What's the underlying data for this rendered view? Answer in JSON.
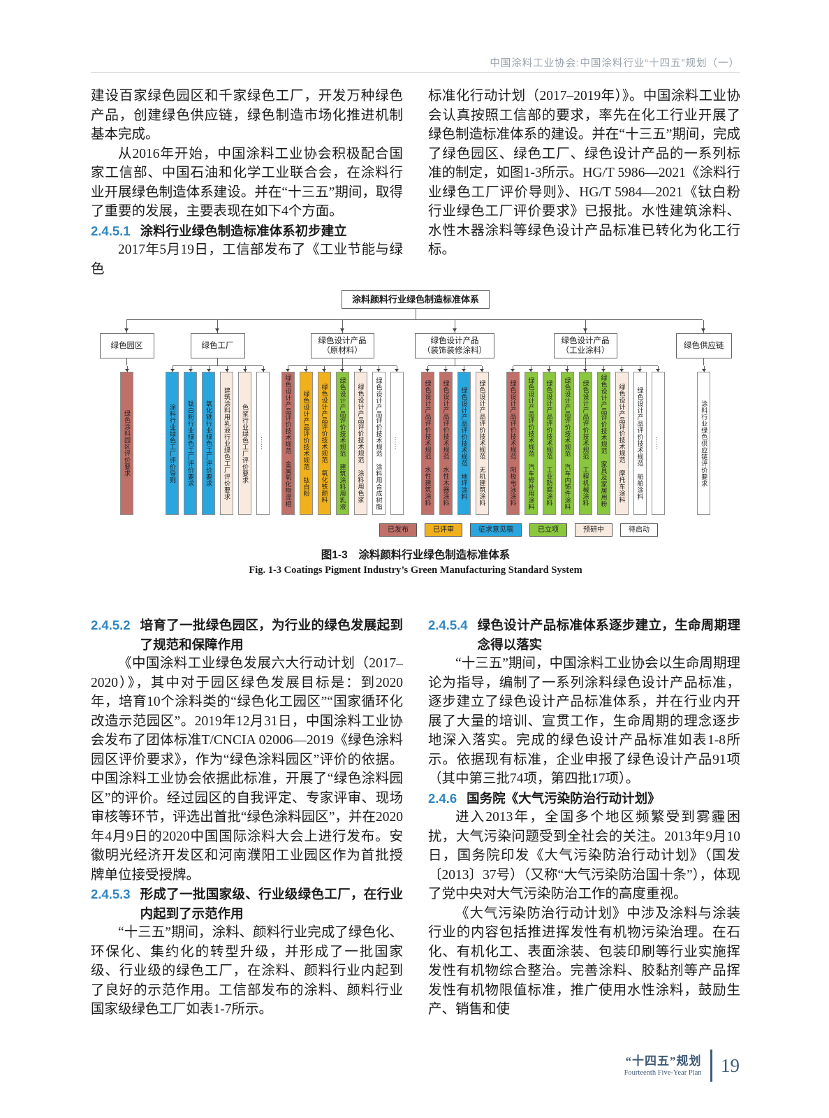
{
  "header": {
    "title": "中国涂料工业协会:中国涂料行业“十四五”规划（一）"
  },
  "col_top_left": {
    "p1": "建设百家绿色园区和千家绿色工厂，开发万种绿色产品，创建绿色供应链，绿色制造市场化推进机制基本完成。",
    "p2": "从2016年开始，中国涂料工业协会积极配合国家工信部、中国石油和化学工业联合会，在涂料行业开展绿色制造体系建设。并在“十三五”期间，取得了重要的发展，主要表现在如下4个方面。",
    "h_num": "2.4.5.1",
    "h_title": "涂料行业绿色制造标准体系初步建立",
    "p3": "2017年5月19日，工信部发布了《工业节能与绿色"
  },
  "col_top_right": {
    "p1": "标准化行动计划（2017–2019年）》。中国涂料工业协会认真按照工信部的要求，率先在化工行业开展了绿色制造标准体系的建设。并在“十三五”期间，完成了绿色园区、绿色工厂、绿色设计产品的一系列标准的制定，如图1-3所示。HG/T 5986—2021《涂料行业绿色工厂评价导则》、HG/T 5984—2021《钛白粉行业绿色工厂评价要求》已报批。水性建筑涂料、水性木器涂料等绿色设计产品标准已转化为化工行标。"
  },
  "figure": {
    "root_label": "涂料颜料行业绿色制造标准体系",
    "status_colors": {
      "published": "#bf7069",
      "reviewed": "#f0b11c",
      "draft": "#2aa6de",
      "approved": "#8bc63f",
      "research": "#f9eadf",
      "pending": "#ffffff"
    },
    "legend": [
      {
        "label": "已发布",
        "status": "published"
      },
      {
        "label": "已评审",
        "status": "reviewed"
      },
      {
        "label": "征求意见稿",
        "status": "draft"
      },
      {
        "label": "已立项",
        "status": "approved"
      },
      {
        "label": "预研中",
        "status": "research"
      },
      {
        "label": "待启动",
        "status": "pending"
      }
    ],
    "groups": [
      {
        "label": [
          "绿色园区"
        ],
        "bars": [
          {
            "text": "绿色涂料园区评价要求",
            "status": "published"
          }
        ]
      },
      {
        "label": [
          "绿色工厂"
        ],
        "bars": [
          {
            "text": "涂料行业绿色工厂评价导则",
            "status": "draft"
          },
          {
            "text": "钛白粉行业绿色工厂评价要求",
            "status": "draft"
          },
          {
            "text": "氧化铁行业绿色工厂评价要求",
            "status": "draft"
          },
          {
            "text": "建筑涂料用乳液行业绿色工厂评价要求",
            "status": "research"
          },
          {
            "text": "色浆行业绿色工厂评价要求",
            "status": "research"
          },
          {
            "text": "……",
            "status": "pending"
          }
        ]
      },
      {
        "label": [
          "绿色设计产品",
          "（原材料）"
        ],
        "bars": [
          {
            "text": "绿色设计产品评价技术规范　金属氧化物混相颜料",
            "status": "published"
          },
          {
            "text": "绿色设计产品评价技术规范　钛白粉",
            "status": "reviewed"
          },
          {
            "text": "绿色设计产品评价技术规范　氧化铁颜料",
            "status": "reviewed"
          },
          {
            "text": "绿色设计产品评价技术规范　建筑涂料用乳液",
            "status": "approved"
          },
          {
            "text": "绿色设计产品评价技术规范　涂料用色浆",
            "status": "research"
          },
          {
            "text": "绿色设计产品评价技术规范　涂料用合成树脂",
            "status": "pending"
          },
          {
            "text": "……",
            "status": "pending"
          }
        ]
      },
      {
        "label": [
          "绿色设计产品",
          "（装饰装修涂料）"
        ],
        "bars": [
          {
            "text": "绿色设计产品评价技术规范　水性建筑涂料",
            "status": "published"
          },
          {
            "text": "绿色设计产品评价技术规范　水性木器涂料",
            "status": "published"
          },
          {
            "text": "绿色设计产品评价技术规范　地坪涂料",
            "status": "draft"
          },
          {
            "text": "绿色设计产品评价技术规范　无机建筑涂料",
            "status": "research"
          }
        ]
      },
      {
        "label": [
          "绿色设计产品",
          "（工业涂料）"
        ],
        "bars": [
          {
            "text": "绿色设计产品评价技术规范　阳极电泳涂料",
            "status": "published"
          },
          {
            "text": "绿色设计产品评价技术规范　汽车修补用涂料",
            "status": "approved"
          },
          {
            "text": "绿色设计产品评价技术规范　工业防腐涂料",
            "status": "approved"
          },
          {
            "text": "绿色设计产品评价技术规范　汽车内饰件涂料",
            "status": "approved"
          },
          {
            "text": "绿色设计产品评价技术规范　工程机械涂料",
            "status": "approved"
          },
          {
            "text": "绿色设计产品评价技术规范　家具及家居用粉末涂料",
            "status": "approved"
          },
          {
            "text": "绿色设计产品评价技术规范　摩托车涂料",
            "status": "research"
          },
          {
            "text": "绿色设计产品评价技术规范　船舶涂料",
            "status": "pending"
          },
          {
            "text": "……",
            "status": "pending"
          }
        ]
      },
      {
        "label": [
          "绿色供应链"
        ],
        "bars": [
          {
            "text": "涂料行业绿色供应链评价要求",
            "status": "pending"
          }
        ]
      }
    ],
    "caption_cn": "图1-3　涂料颜料行业绿色制造标准体系",
    "caption_en": "Fig. 1-3  Coatings Pigment Industry’s Green Manufacturing Standard System"
  },
  "col_bot_left": {
    "h1_num": "2.4.5.2",
    "h1_title": "培育了一批绿色园区，为行业的绿色发展起到了规范和保障作用",
    "p1": "《中国涂料工业绿色发展六大行动计划（2017–2020）》，其中对于园区绿色发展目标是：到2020年，培育10个涂料类的“绿色化工园区”“国家循环化改造示范园区”。2019年12月31日，中国涂料工业协会发布了团体标准T/CNCIA 02006—2019《绿色涂料园区评价要求》，作为“绿色涂料园区”评价的依据。中国涂料工业协会依据此标准，开展了“绿色涂料园区”的评价。经过园区的自我评定、专家评审、现场审核等环节，评选出首批“绿色涂料园区”，并在2020年4月9日的2020中国国际涂料大会上进行发布。安徽明光经济开发区和河南濮阳工业园区作为首批授牌单位接受授牌。",
    "h2_num": "2.4.5.3",
    "h2_title": "形成了一批国家级、行业级绿色工厂，在行业内起到了示范作用",
    "p2": "“十三五”期间，涂料、颜料行业完成了绿色化、环保化、集约化的转型升级，并形成了一批国家级、行业级的绿色工厂，在涂料、颜料行业内起到了良好的示范作用。工信部发布的涂料、颜料行业国家级绿色工厂如表1-7所示。"
  },
  "col_bot_right": {
    "h1_num": "2.4.5.4",
    "h1_title": "绿色设计产品标准体系逐步建立，生命周期理念得以落实",
    "p1": "“十三五”期间，中国涂料工业协会以生命周期理论为指导，编制了一系列涂料绿色设计产品标准，逐步建立了绿色设计产品标准体系，并在行业内开展了大量的培训、宣贯工作，生命周期的理念逐步地深入落实。完成的绿色设计产品标准如表1-8所示。依据现有标准，企业申报了绿色设计产品91项（其中第三批74项，第四批17项）。",
    "h2_num": "2.4.6",
    "h2_title": "国务院《大气污染防治行动计划》",
    "p2": "进入2013年，全国多个地区频繁受到雾霾困扰，大气污染问题受到全社会的关注。2013年9月10日，国务院印发《大气污染防治行动计划》（国发〔2013〕37号）（又称“大气污染防治国十条”），体现了党中央对大气污染防治工作的高度重视。",
    "p3": "《大气污染防治行动计划》中涉及涂料与涂装行业的内容包括推进挥发性有机物污染治理。在石化、有机化工、表面涂装、包装印刷等行业实施挥发性有机物综合整治。完善涂料、胶黏剂等产品挥发性有机物限值标准，推广使用水性涂料，鼓励生产、销售和使"
  },
  "footer": {
    "plan_cn": "“十四五”规划",
    "plan_en": "Fourteenth Five-Year Plan",
    "page_number": "19"
  }
}
